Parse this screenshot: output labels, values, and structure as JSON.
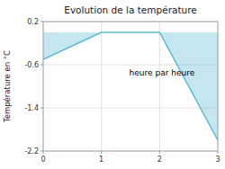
{
  "chart_data": {
    "type": "area",
    "title": "Evolution de la température",
    "y_label": "Température en °C",
    "annotation": "heure par heure",
    "x": [
      0,
      1,
      2,
      3
    ],
    "series": [
      {
        "color": "#5ab8d0",
        "values": [
          -0.5,
          0.0,
          0.0,
          -2.0
        ]
      }
    ],
    "xlim": [
      0,
      3
    ],
    "ylim": [
      -2.2,
      0.2
    ],
    "xticks": [
      0,
      1,
      2,
      3
    ],
    "yticks": [
      0.2,
      -0.6,
      -1.4,
      -2.2
    ],
    "grid": true
  }
}
